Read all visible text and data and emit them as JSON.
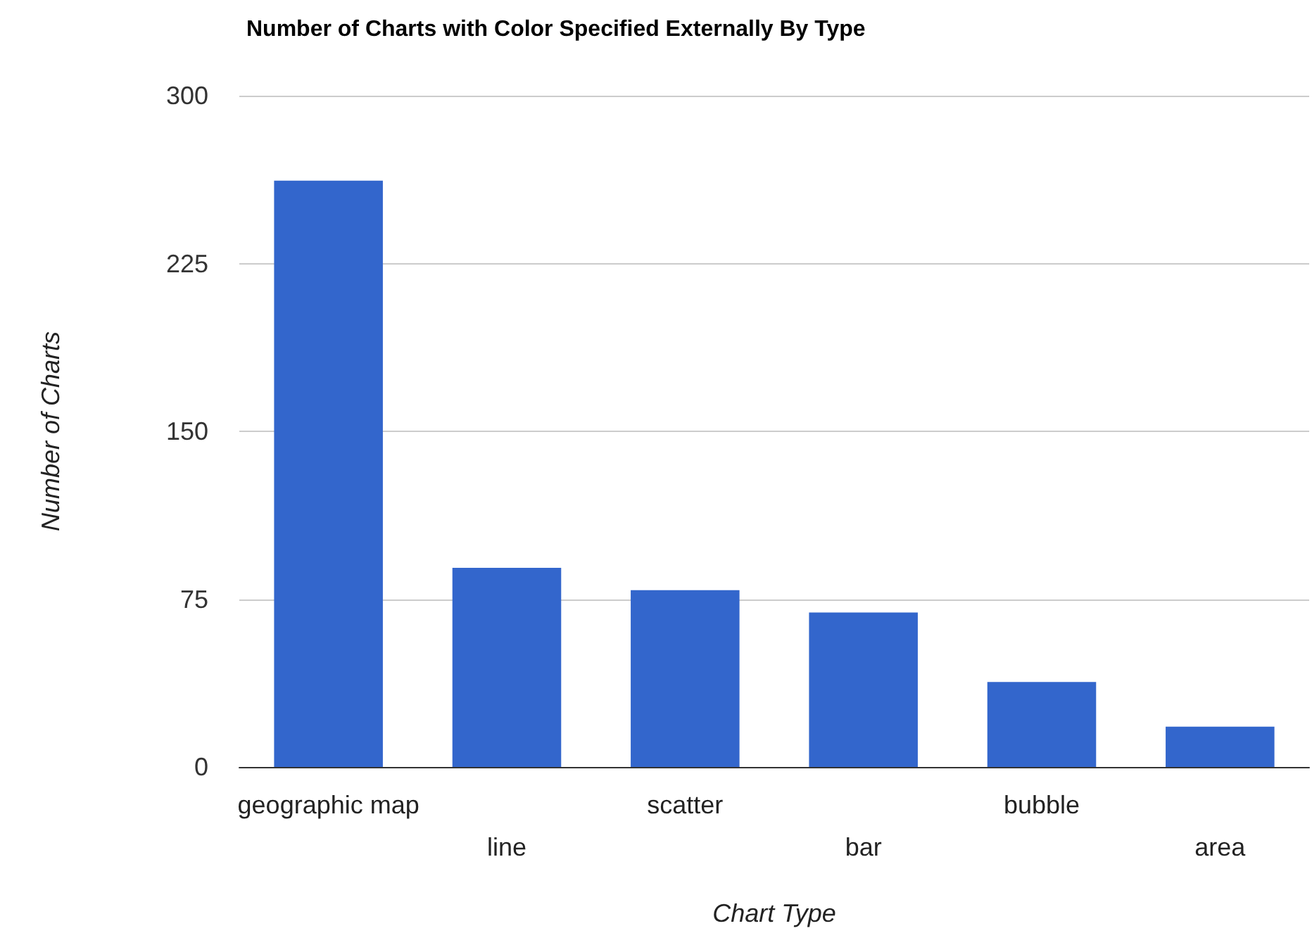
{
  "chart_data": {
    "type": "bar",
    "title": "Number of Charts with Color Specified Externally By Type",
    "xlabel": "Chart Type",
    "ylabel": "Number of Charts",
    "categories": [
      "geographic map",
      "line",
      "scatter",
      "bar",
      "bubble",
      "area"
    ],
    "values": [
      262,
      89,
      79,
      69,
      38,
      18
    ],
    "color": "#3366cc",
    "ylim": [
      0,
      300
    ],
    "yticks": [
      0,
      75,
      150,
      225,
      300
    ],
    "grid": "y"
  }
}
